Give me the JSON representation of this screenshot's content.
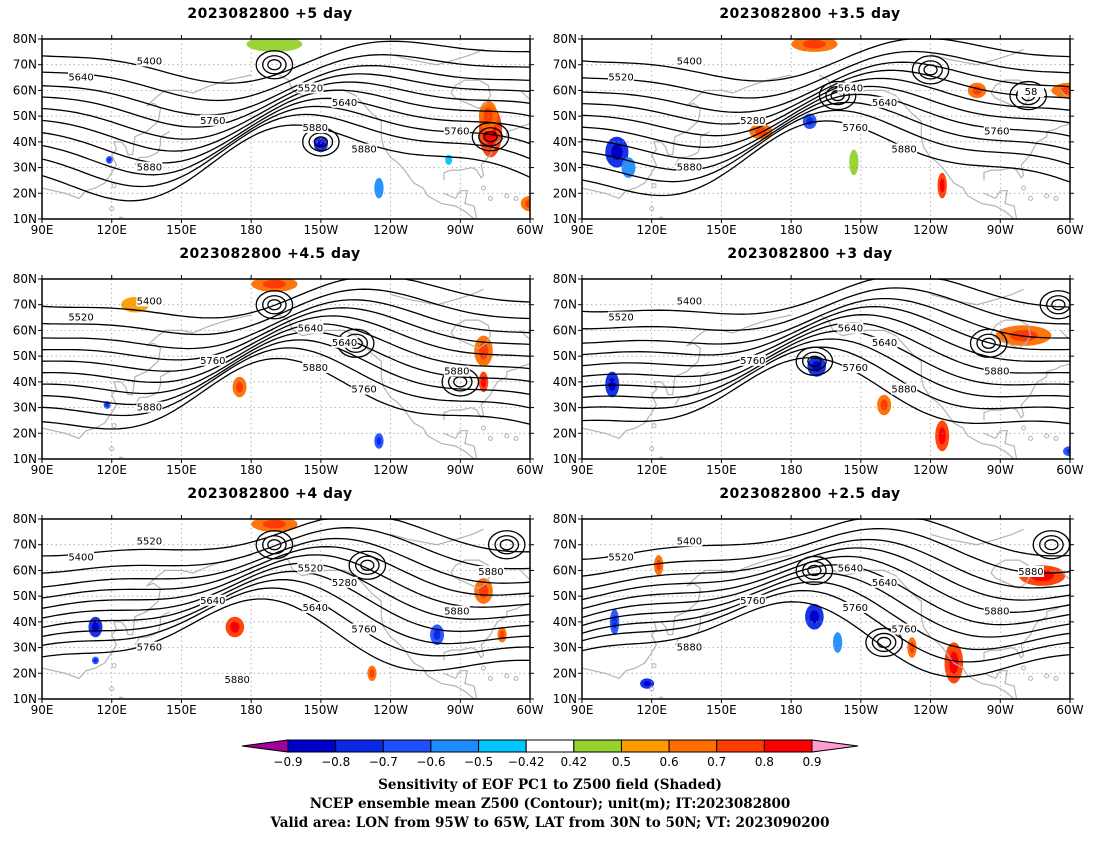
{
  "map": {
    "lat_ticks": [
      "80N",
      "70N",
      "60N",
      "50N",
      "40N",
      "30N",
      "20N",
      "10N"
    ],
    "lon_ticks": [
      "90E",
      "120E",
      "150E",
      "180",
      "150W",
      "120W",
      "90W",
      "60W"
    ],
    "grid": true,
    "contour_color": "#000000",
    "coast_color": "#b4b4b4"
  },
  "panels": [
    {
      "title": "2023082800 +5 day",
      "contour_labels": [
        "5400",
        "5640",
        "5520",
        "5640",
        "5760",
        "5880",
        "5880",
        "5760",
        "5880"
      ],
      "centers": [
        [
          -150,
          40
        ],
        [
          -77,
          42
        ],
        [
          -170,
          70
        ]
      ]
    },
    {
      "title": "2023082800 +3.5 day",
      "contour_labels": [
        "5400",
        "5520",
        "5640",
        "5640",
        "5280",
        "5760",
        "5880",
        "5760",
        "5880",
        "58"
      ],
      "centers": [
        [
          -160,
          58
        ],
        [
          -120,
          68
        ],
        [
          -78,
          58
        ]
      ]
    },
    {
      "title": "2023082800 +4.5 day",
      "contour_labels": [
        "5400",
        "5520",
        "5640",
        "5640",
        "5760",
        "5880",
        "5760",
        "5880",
        "5880"
      ],
      "centers": [
        [
          -170,
          70
        ],
        [
          -135,
          55
        ],
        [
          -90,
          40
        ]
      ]
    },
    {
      "title": "2023082800 +3 day",
      "contour_labels": [
        "5400",
        "5520",
        "5640",
        "5640",
        "5760",
        "5760",
        "5880",
        "5880"
      ],
      "centers": [
        [
          -170,
          48
        ],
        [
          -95,
          55
        ],
        [
          -65,
          70
        ]
      ]
    },
    {
      "title": "2023082800 +4 day",
      "contour_labels": [
        "5520",
        "5400",
        "5520",
        "5280",
        "5640",
        "5640",
        "5760",
        "5880",
        "5760",
        "5880",
        "5880"
      ],
      "centers": [
        [
          -170,
          70
        ],
        [
          -130,
          62
        ],
        [
          -70,
          70
        ]
      ]
    },
    {
      "title": "2023082800 +2.5 day",
      "contour_labels": [
        "5400",
        "5520",
        "5640",
        "5640",
        "5760",
        "5760",
        "5760",
        "5880",
        "5880",
        "5880"
      ],
      "centers": [
        [
          -170,
          60
        ],
        [
          -140,
          32
        ],
        [
          -68,
          70
        ]
      ]
    }
  ],
  "colorbar": {
    "levels": [
      "−0.9",
      "−0.8",
      "−0.7",
      "−0.6",
      "−0.5",
      "−0.42",
      "0.42",
      "0.5",
      "0.6",
      "0.7",
      "0.8",
      "0.9"
    ],
    "colors": [
      "#a0009b",
      "#0000c8",
      "#0a28e6",
      "#1e50ff",
      "#1e8cff",
      "#00c8ff",
      "#ffffff",
      "#96d22d",
      "#ff9b00",
      "#ff6e00",
      "#ff3c00",
      "#ff0000",
      "#ff9bd2"
    ]
  },
  "footer": {
    "line1": "Sensitivity of EOF PC1 to Z500 field (Shaded)",
    "line2": "NCEP ensemble mean Z500 (Contour); unit(m); IT:2023082800",
    "line3": "Valid area: LON from 95W to 65W, LAT from 30N to 50N; VT: 2023090200"
  }
}
